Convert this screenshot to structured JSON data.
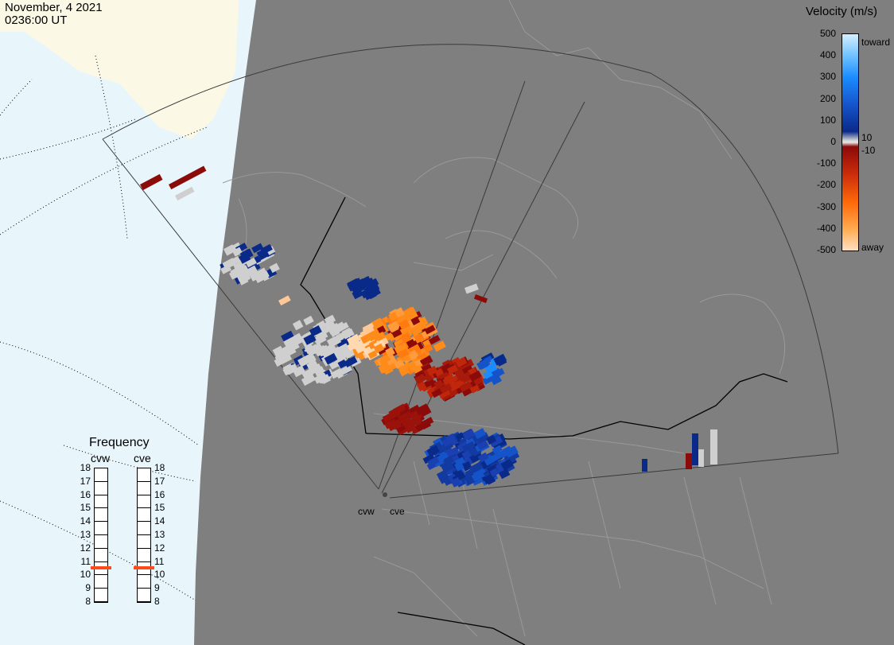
{
  "header": {
    "date": "November, 4 2021",
    "time": "0236:00 UT"
  },
  "legend": {
    "title": "Velocity (m/s)",
    "ticks": [
      "500",
      "400",
      "300",
      "200",
      "100",
      "0",
      "-100",
      "-200",
      "-300",
      "-400",
      "-500"
    ],
    "extra_labels": {
      "toward": "toward",
      "away": "away",
      "pos_threshold": "10",
      "neg_threshold": "-10"
    },
    "colors": {
      "toward_max": "#bfe6ff",
      "toward_mid": "#1a8cff",
      "toward_low": "#0a2a8a",
      "near_zero": "#cfcfcf",
      "away_low": "#8b0a0a",
      "away_mid": "#ff8c1a",
      "away_max": "#ffd9b0"
    }
  },
  "frequency": {
    "title": "Frequency",
    "radars": [
      {
        "name": "cvw",
        "value": 11
      },
      {
        "name": "cve",
        "value": 11
      }
    ],
    "levels": [
      18,
      17,
      16,
      15,
      14,
      13,
      12,
      11,
      10,
      9,
      8
    ],
    "marker_color": "#ff4a1a"
  },
  "map": {
    "site_labels": [
      "cvw",
      "cve"
    ],
    "background": "#7f7f7f",
    "ocean": "#e8f6fc",
    "land_outside": "#fbf8e6"
  }
}
